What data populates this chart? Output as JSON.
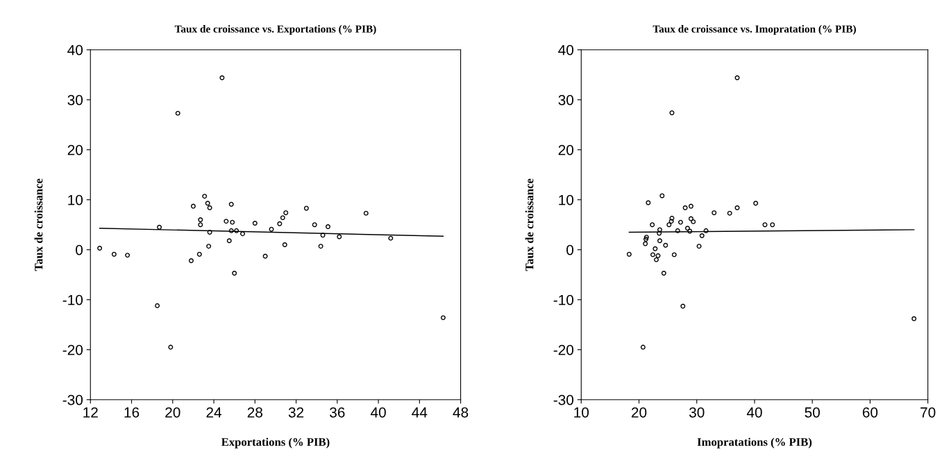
{
  "chart_data": [
    {
      "type": "scatter",
      "title": "Taux de croissance vs. Exportations (% PIB)",
      "xlabel": "Exportations (% PIB)",
      "ylabel": "Taux de croissance",
      "xlim": [
        12,
        48
      ],
      "xticks": [
        12,
        16,
        20,
        24,
        28,
        32,
        36,
        40,
        44,
        48
      ],
      "ylim": [
        -30,
        40
      ],
      "yticks": [
        -30,
        -20,
        -10,
        0,
        10,
        20,
        30,
        40
      ],
      "grid": false,
      "marker": "circle",
      "series": [
        {
          "color": "#000000",
          "x": [
            12.9,
            14.3,
            15.6,
            18.5,
            18.7,
            19.8,
            20.5,
            21.8,
            22.0,
            22.6,
            22.7,
            22.7,
            23.1,
            23.4,
            23.5,
            23.6,
            23.6,
            24.8,
            25.2,
            25.5,
            25.7,
            25.7,
            25.8,
            26.0,
            26.2,
            26.8,
            28.0,
            29.0,
            29.6,
            30.4,
            30.7,
            30.9,
            31.0,
            33.0,
            33.8,
            34.4,
            34.6,
            35.1,
            36.2,
            38.8,
            41.2,
            46.3
          ],
          "values": [
            0.3,
            -0.9,
            -1.1,
            -11.2,
            4.5,
            -19.5,
            27.3,
            -2.2,
            8.7,
            -0.9,
            5.0,
            6.0,
            10.7,
            9.3,
            0.7,
            8.4,
            3.5,
            34.4,
            5.7,
            1.8,
            9.1,
            3.8,
            5.5,
            -4.7,
            3.8,
            3.2,
            5.3,
            -1.3,
            4.1,
            5.2,
            6.4,
            1.0,
            7.4,
            8.3,
            5.0,
            0.7,
            2.9,
            4.6,
            2.6,
            7.3,
            2.3,
            -13.6
          ]
        },
        {
          "type": "line",
          "color": "#000000",
          "marker": "none",
          "line_style": "solid",
          "x": [
            12.9,
            46.3
          ],
          "values": [
            4.3,
            2.7
          ]
        }
      ]
    },
    {
      "type": "scatter",
      "title": "Taux de croissance vs. Imopratation (% PIB)",
      "xlabel": "Imopratations (% PIB)",
      "ylabel": "Taux de croissance",
      "xlim": [
        10,
        70
      ],
      "xticks": [
        10,
        20,
        30,
        40,
        50,
        60,
        70
      ],
      "ylim": [
        -30,
        40
      ],
      "yticks": [
        -30,
        -20,
        -10,
        0,
        10,
        20,
        30,
        40
      ],
      "grid": false,
      "marker": "circle",
      "series": [
        {
          "color": "#000000",
          "x": [
            18.3,
            20.7,
            21.1,
            21.2,
            21.3,
            21.6,
            22.3,
            22.4,
            22.8,
            23.0,
            23.3,
            23.5,
            23.6,
            23.6,
            24.0,
            24.3,
            24.6,
            25.2,
            25.6,
            25.7,
            25.7,
            26.1,
            26.7,
            27.2,
            27.6,
            28.0,
            28.4,
            28.8,
            29.0,
            29.0,
            29.4,
            30.4,
            30.9,
            31.6,
            33.0,
            35.7,
            37.0,
            37.0,
            40.2,
            41.8,
            43.1,
            67.6
          ],
          "values": [
            -0.9,
            -19.5,
            1.2,
            2.1,
            2.5,
            9.4,
            5.0,
            -1.0,
            0.2,
            -2.0,
            -1.2,
            3.3,
            1.8,
            4.0,
            10.8,
            -4.7,
            0.9,
            5.0,
            5.7,
            6.3,
            27.4,
            -1.0,
            3.8,
            5.5,
            -11.3,
            8.4,
            4.3,
            3.7,
            8.7,
            6.2,
            5.6,
            0.7,
            2.8,
            3.8,
            7.4,
            7.3,
            34.4,
            8.4,
            9.3,
            5.0,
            5.0,
            -13.8
          ]
        },
        {
          "type": "line",
          "color": "#000000",
          "marker": "none",
          "line_style": "solid",
          "x": [
            18.3,
            67.6
          ],
          "values": [
            3.5,
            4.0
          ]
        }
      ]
    }
  ]
}
